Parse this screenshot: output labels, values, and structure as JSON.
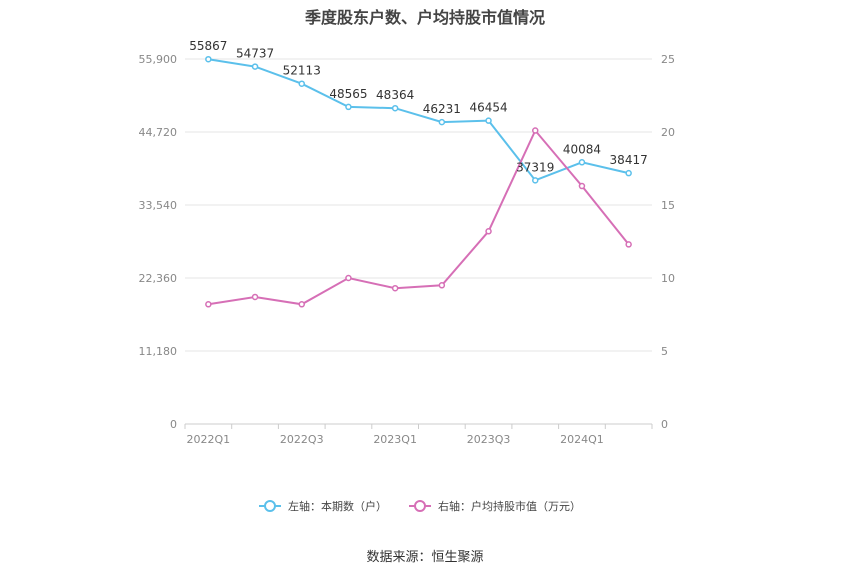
{
  "chart_data": {
    "type": "line",
    "title": "季度股东户数、户均持股市值情况",
    "source": "数据来源：恒生聚源",
    "categories": [
      "2022Q1",
      "2022Q2",
      "2022Q3",
      "2022Q4",
      "2023Q1",
      "2023Q2",
      "2023Q3",
      "2023Q4",
      "2024Q1",
      "2024Q2"
    ],
    "x_tick_labels": [
      "2022Q1",
      "2022Q3",
      "2023Q1",
      "2023Q3",
      "2024Q1"
    ],
    "left_axis": {
      "ticks": [
        "0",
        "11,180",
        "22,360",
        "33,540",
        "44,720",
        "55,900"
      ],
      "ylim": [
        0,
        55900
      ]
    },
    "right_axis": {
      "ticks": [
        "0",
        "5",
        "10",
        "15",
        "20",
        "25"
      ],
      "ylim": [
        0,
        25
      ]
    },
    "series": [
      {
        "name": "左轴：本期数（户）",
        "axis": "left",
        "color": "#5bc0eb",
        "values": [
          55867,
          54737,
          52113,
          48565,
          48364,
          46231,
          46454,
          37319,
          40084,
          38417
        ]
      },
      {
        "name": "右轴：户均持股市值（万元）",
        "axis": "right",
        "color": "#d66fb6",
        "values": [
          8.2,
          8.7,
          8.2,
          10.0,
          9.3,
          9.5,
          13.2,
          20.1,
          16.3,
          12.3
        ]
      }
    ]
  }
}
